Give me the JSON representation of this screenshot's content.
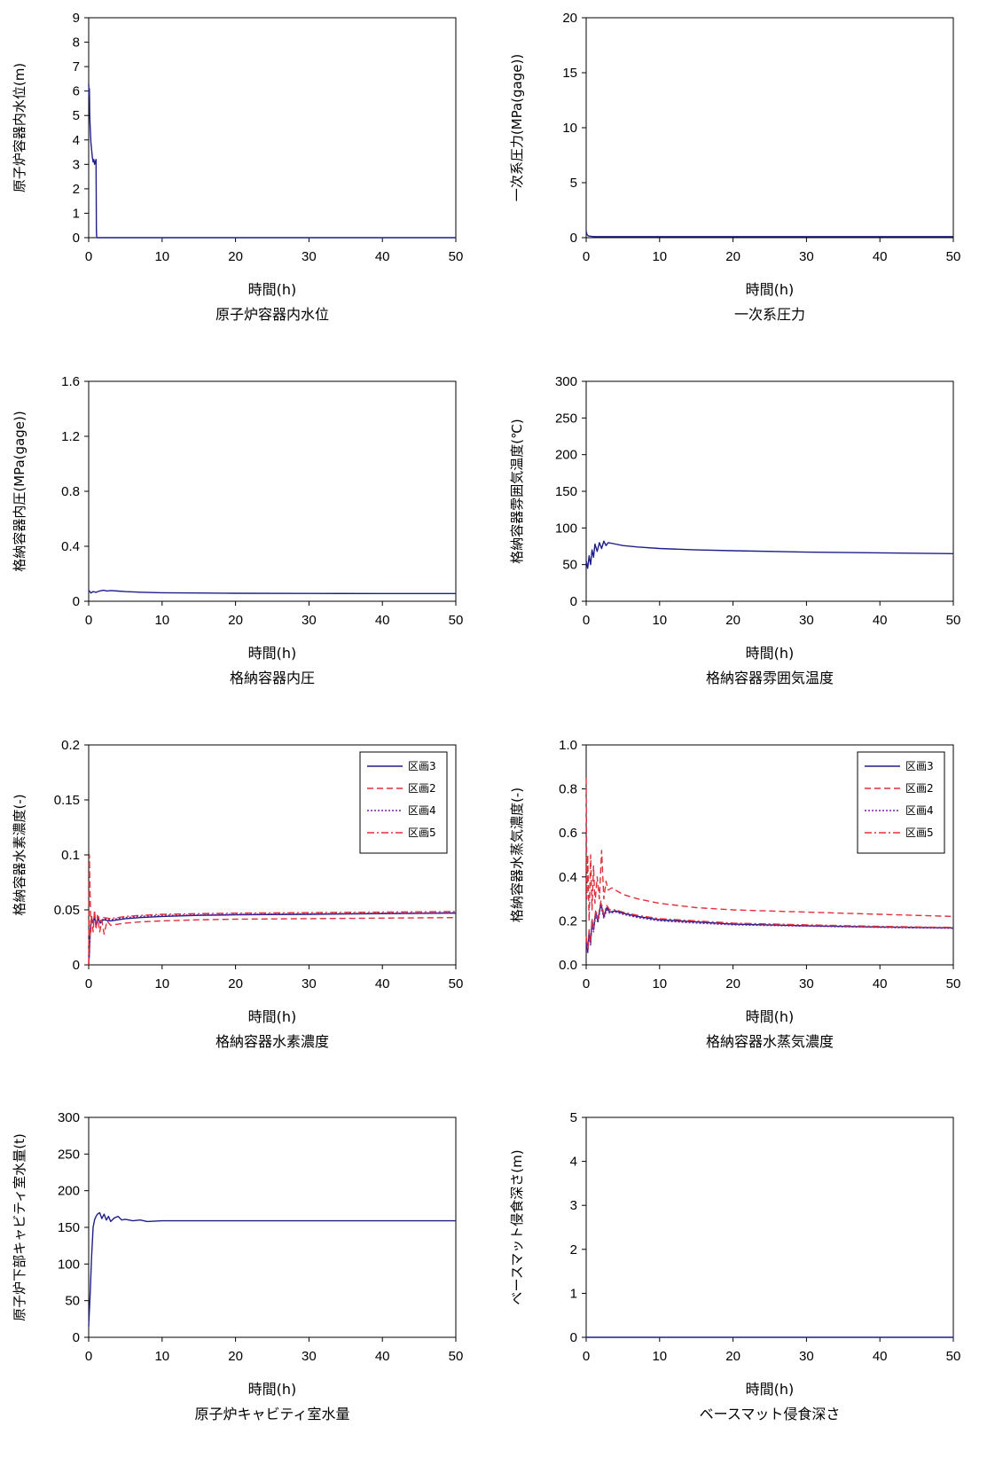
{
  "chart_data": [
    {
      "type": "line",
      "title": "原子炉容器内水位",
      "xlabel": "時間(h)",
      "ylabel": "原子炉容器内水位(m)",
      "xlim": [
        0,
        50
      ],
      "ylim": [
        0,
        9
      ],
      "xticks": [
        0,
        10,
        20,
        30,
        40,
        50
      ],
      "yticks": [
        0,
        1,
        2,
        3,
        4,
        5,
        6,
        7,
        8,
        9
      ],
      "ytick_labels": [
        "0",
        "1",
        "2",
        "3",
        "4",
        "5",
        "6",
        "7",
        "8",
        "9"
      ],
      "legend": false,
      "series": [
        {
          "color": "#1f1f8a",
          "dash": "",
          "x": [
            0,
            0.05,
            0.1,
            0.15,
            0.2,
            0.25,
            0.3,
            0.4,
            0.5,
            0.6,
            0.7,
            0.8,
            0.9,
            1.0,
            1.05,
            1.1,
            2,
            50
          ],
          "y": [
            6.3,
            5.8,
            6.1,
            5.0,
            4.5,
            4.2,
            3.9,
            3.6,
            3.3,
            3.1,
            3.2,
            3.0,
            3.1,
            3.2,
            0.3,
            0,
            0,
            0
          ]
        }
      ]
    },
    {
      "type": "line",
      "title": "一次系圧力",
      "xlabel": "時間(h)",
      "ylabel": "一次系圧力(MPa(gage))",
      "xlim": [
        0,
        50
      ],
      "ylim": [
        0,
        20
      ],
      "xticks": [
        0,
        10,
        20,
        30,
        40,
        50
      ],
      "yticks": [
        0,
        5,
        10,
        15,
        20
      ],
      "ytick_labels": [
        "0",
        "5",
        "10",
        "15",
        "20"
      ],
      "legend": false,
      "series": [
        {
          "color": "#1f1f8a",
          "dash": "",
          "x": [
            0,
            0.1,
            0.3,
            1,
            50
          ],
          "y": [
            0.6,
            0.3,
            0.15,
            0.1,
            0.1
          ]
        }
      ]
    },
    {
      "type": "line",
      "title": "格納容器内圧",
      "xlabel": "時間(h)",
      "ylabel": "格納容器内圧(MPa(gage))",
      "xlim": [
        0,
        50
      ],
      "ylim": [
        0,
        1.6
      ],
      "xticks": [
        0,
        10,
        20,
        30,
        40,
        50
      ],
      "yticks": [
        0,
        0.4,
        0.8,
        1.2,
        1.6
      ],
      "ytick_labels": [
        "0",
        "0.4",
        "0.8",
        "1.2",
        "1.6"
      ],
      "legend": false,
      "series": [
        {
          "color": "#1f1f8a",
          "dash": "",
          "x": [
            0,
            0.3,
            0.6,
            1,
            1.5,
            2,
            2.5,
            3,
            4,
            5,
            7,
            10,
            15,
            20,
            30,
            40,
            50
          ],
          "y": [
            0.08,
            0.06,
            0.07,
            0.065,
            0.075,
            0.08,
            0.075,
            0.078,
            0.074,
            0.07,
            0.066,
            0.062,
            0.06,
            0.058,
            0.057,
            0.056,
            0.056
          ]
        }
      ]
    },
    {
      "type": "line",
      "title": "格納容器雰囲気温度",
      "xlabel": "時間(h)",
      "ylabel": "格納容器雰囲気温度(℃)",
      "xlim": [
        0,
        50
      ],
      "ylim": [
        0,
        300
      ],
      "xticks": [
        0,
        10,
        20,
        30,
        40,
        50
      ],
      "yticks": [
        0,
        50,
        100,
        150,
        200,
        250,
        300
      ],
      "ytick_labels": [
        "0",
        "50",
        "100",
        "150",
        "200",
        "250",
        "300"
      ],
      "legend": false,
      "series": [
        {
          "color": "#1f1f8a",
          "dash": "",
          "x": [
            0,
            0.2,
            0.4,
            0.6,
            0.8,
            1.0,
            1.2,
            1.5,
            1.8,
            2.1,
            2.4,
            2.7,
            3,
            4,
            5,
            7,
            10,
            15,
            20,
            30,
            40,
            50
          ],
          "y": [
            55,
            45,
            62,
            50,
            70,
            60,
            78,
            68,
            80,
            72,
            82,
            76,
            80,
            78,
            76,
            74,
            72,
            70,
            69,
            67,
            66,
            65
          ]
        }
      ]
    },
    {
      "type": "line",
      "title": "格納容器水素濃度",
      "xlabel": "時間(h)",
      "ylabel": "格納容器水素濃度(-)",
      "xlim": [
        0,
        50
      ],
      "ylim": [
        0,
        0.2
      ],
      "xticks": [
        0,
        10,
        20,
        30,
        40,
        50
      ],
      "yticks": [
        0,
        0.05,
        0.1,
        0.15,
        0.2
      ],
      "ytick_labels": [
        "0",
        "0.05",
        "0.1",
        "0.15",
        "0.2"
      ],
      "legend": true,
      "series": [
        {
          "name": "区画3",
          "color": "#1f1f8a",
          "dash": "",
          "x": [
            0,
            0.1,
            0.2,
            0.4,
            0.6,
            0.8,
            1.0,
            1.3,
            1.6,
            2,
            3,
            4,
            5,
            7,
            10,
            15,
            20,
            30,
            40,
            50
          ],
          "y": [
            0,
            0.01,
            0.03,
            0.042,
            0.038,
            0.044,
            0.036,
            0.042,
            0.038,
            0.041,
            0.04,
            0.041,
            0.042,
            0.043,
            0.044,
            0.045,
            0.0455,
            0.046,
            0.0465,
            0.047
          ]
        },
        {
          "name": "区画2",
          "color": "#e0303a",
          "dash": "7,4",
          "x": [
            0,
            0.1,
            0.2,
            0.3,
            0.4,
            0.6,
            0.8,
            1.0,
            1.2,
            1.5,
            1.8,
            2.1,
            2.5,
            3,
            4,
            5,
            7,
            10,
            15,
            20,
            30,
            40,
            50
          ],
          "y": [
            0,
            0.1,
            0.06,
            0.03,
            0.045,
            0.03,
            0.05,
            0.032,
            0.045,
            0.03,
            0.04,
            0.028,
            0.04,
            0.036,
            0.037,
            0.038,
            0.039,
            0.04,
            0.041,
            0.0415,
            0.042,
            0.0425,
            0.043
          ]
        },
        {
          "name": "区画4",
          "color": "#7a1fa0",
          "dash": "2,2",
          "x": [
            0,
            0.1,
            0.2,
            0.4,
            0.6,
            0.8,
            1.0,
            1.3,
            1.6,
            2,
            3,
            4,
            5,
            7,
            10,
            15,
            20,
            30,
            40,
            50
          ],
          "y": [
            0,
            0.012,
            0.032,
            0.043,
            0.039,
            0.045,
            0.037,
            0.043,
            0.039,
            0.042,
            0.041,
            0.042,
            0.043,
            0.044,
            0.045,
            0.0455,
            0.046,
            0.0465,
            0.047,
            0.0475
          ]
        },
        {
          "name": "区画5",
          "color": "#e0303a",
          "dash": "8,3,2,3",
          "x": [
            0,
            0.1,
            0.2,
            0.4,
            0.6,
            0.8,
            1.0,
            1.3,
            1.6,
            2,
            3,
            4,
            5,
            7,
            10,
            15,
            20,
            30,
            40,
            50
          ],
          "y": [
            0,
            0.015,
            0.035,
            0.044,
            0.04,
            0.046,
            0.038,
            0.044,
            0.04,
            0.043,
            0.042,
            0.043,
            0.044,
            0.045,
            0.046,
            0.0465,
            0.047,
            0.0475,
            0.048,
            0.0485
          ]
        }
      ]
    },
    {
      "type": "line",
      "title": "格納容器水蒸気濃度",
      "xlabel": "時間(h)",
      "ylabel": "格納容器水蒸気濃度(-)",
      "xlim": [
        0,
        50
      ],
      "ylim": [
        0,
        1.0
      ],
      "xticks": [
        0,
        10,
        20,
        30,
        40,
        50
      ],
      "yticks": [
        0,
        0.2,
        0.4,
        0.6,
        0.8,
        1.0
      ],
      "ytick_labels": [
        "0.0",
        "0.2",
        "0.4",
        "0.6",
        "0.8",
        "1.0"
      ],
      "legend": true,
      "series": [
        {
          "name": "区画3",
          "color": "#1f1f8a",
          "dash": "",
          "x": [
            0,
            0.2,
            0.4,
            0.6,
            0.8,
            1.0,
            1.3,
            1.6,
            2,
            2.4,
            2.8,
            3.2,
            4,
            5,
            7,
            10,
            15,
            20,
            30,
            40,
            50
          ],
          "y": [
            0.12,
            0.06,
            0.15,
            0.1,
            0.2,
            0.16,
            0.24,
            0.2,
            0.28,
            0.22,
            0.26,
            0.24,
            0.245,
            0.235,
            0.22,
            0.205,
            0.195,
            0.185,
            0.178,
            0.172,
            0.168
          ]
        },
        {
          "name": "区画2",
          "color": "#e0303a",
          "dash": "7,4",
          "x": [
            0,
            0.1,
            0.2,
            0.4,
            0.6,
            0.8,
            1.0,
            1.2,
            1.5,
            1.8,
            2.1,
            2.4,
            2.7,
            3,
            3.5,
            4,
            5,
            7,
            10,
            15,
            20,
            30,
            40,
            50
          ],
          "y": [
            0.85,
            0.3,
            0.5,
            0.2,
            0.5,
            0.25,
            0.45,
            0.28,
            0.4,
            0.3,
            0.52,
            0.3,
            0.38,
            0.34,
            0.35,
            0.34,
            0.32,
            0.3,
            0.28,
            0.26,
            0.25,
            0.24,
            0.23,
            0.22
          ]
        },
        {
          "name": "区画4",
          "color": "#7a1fa0",
          "dash": "2,2",
          "x": [
            0,
            0.2,
            0.4,
            0.6,
            0.8,
            1.0,
            1.3,
            1.6,
            2,
            2.4,
            2.8,
            3.2,
            4,
            5,
            7,
            10,
            15,
            20,
            30,
            40,
            50
          ],
          "y": [
            0.11,
            0.05,
            0.14,
            0.09,
            0.19,
            0.15,
            0.23,
            0.19,
            0.27,
            0.21,
            0.25,
            0.235,
            0.24,
            0.23,
            0.215,
            0.2,
            0.19,
            0.182,
            0.176,
            0.17,
            0.166
          ]
        },
        {
          "name": "区画5",
          "color": "#e0303a",
          "dash": "8,3,2,3",
          "x": [
            0,
            0.2,
            0.4,
            0.6,
            0.8,
            1.0,
            1.3,
            1.6,
            2,
            2.4,
            2.8,
            3.2,
            4,
            5,
            7,
            10,
            15,
            20,
            30,
            40,
            50
          ],
          "y": [
            0.13,
            0.07,
            0.16,
            0.11,
            0.21,
            0.17,
            0.25,
            0.21,
            0.29,
            0.23,
            0.27,
            0.25,
            0.25,
            0.24,
            0.225,
            0.21,
            0.2,
            0.19,
            0.182,
            0.175,
            0.17
          ]
        }
      ]
    },
    {
      "type": "line",
      "title": "原子炉キャビティ室水量",
      "xlabel": "時間(h)",
      "ylabel": "原子炉下部キャビティ室水量(t)",
      "xlim": [
        0,
        50
      ],
      "ylim": [
        0,
        300
      ],
      "xticks": [
        0,
        10,
        20,
        30,
        40,
        50
      ],
      "yticks": [
        0,
        50,
        100,
        150,
        200,
        250,
        300
      ],
      "ytick_labels": [
        "0",
        "50",
        "100",
        "150",
        "200",
        "250",
        "300"
      ],
      "legend": false,
      "series": [
        {
          "color": "#1f1f8a",
          "dash": "",
          "x": [
            0,
            0.2,
            0.4,
            0.6,
            0.8,
            1.0,
            1.2,
            1.5,
            1.8,
            2.1,
            2.4,
            2.7,
            3.0,
            3.5,
            4,
            4.5,
            5,
            6,
            7,
            8,
            10,
            15,
            20,
            30,
            40,
            50
          ],
          "y": [
            15,
            60,
            110,
            150,
            160,
            165,
            168,
            170,
            162,
            168,
            160,
            165,
            158,
            163,
            165,
            160,
            161,
            159,
            160,
            158,
            159,
            159,
            159,
            159,
            159,
            159
          ]
        }
      ]
    },
    {
      "type": "line",
      "title": "ベースマット侵食深さ",
      "xlabel": "時間(h)",
      "ylabel": "ベースマット侵食深さ(m)",
      "xlim": [
        0,
        50
      ],
      "ylim": [
        0,
        5
      ],
      "xticks": [
        0,
        10,
        20,
        30,
        40,
        50
      ],
      "yticks": [
        0,
        1,
        2,
        3,
        4,
        5
      ],
      "ytick_labels": [
        "0",
        "1",
        "2",
        "3",
        "4",
        "5"
      ],
      "legend": false,
      "series": [
        {
          "color": "#1f1f8a",
          "dash": "",
          "x": [
            0,
            50
          ],
          "y": [
            0,
            0
          ]
        }
      ]
    }
  ]
}
